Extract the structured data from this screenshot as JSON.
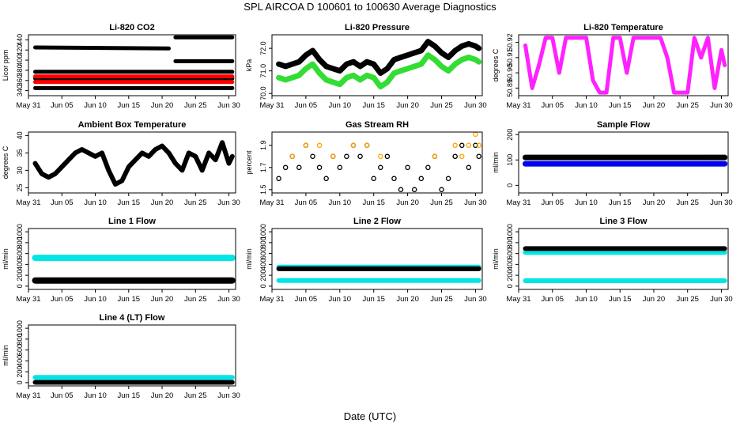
{
  "page": {
    "title": "SPL   AIRCOA D   100601 to 100630   Average Diagnostics",
    "xlabel": "Date (UTC)"
  },
  "colors": {
    "black": "#000000",
    "red": "#ff0000",
    "green": "#33dd33",
    "magenta": "#ff22ff",
    "orange": "#ffa500",
    "blue": "#0000ee",
    "cyan": "#00e5e5"
  },
  "chart_data": [
    {
      "id": "co2",
      "type": "scatter",
      "title": "Li-820 CO2",
      "ylabel": "Licor ppm",
      "ylim": [
        330,
        450
      ],
      "yticks": [
        340,
        360,
        380,
        400,
        420,
        440
      ],
      "xlim": [
        0,
        31
      ],
      "xtick_values": [
        0,
        5,
        10,
        15,
        20,
        25,
        30
      ],
      "xtick_labels": [
        "May 31",
        "Jun 05",
        "Jun 10",
        "Jun 15",
        "Jun 20",
        "Jun 25",
        "Jun 30"
      ],
      "series": [
        {
          "name": "standard-1",
          "color": "black",
          "x": [
            1,
            21
          ],
          "y": [
            425,
            423
          ]
        },
        {
          "name": "standard-1b",
          "color": "black",
          "x": [
            22,
            30.5
          ],
          "y": [
            445,
            445
          ]
        },
        {
          "name": "standard-2",
          "color": "black",
          "x": [
            1,
            30.5
          ],
          "y": [
            377,
            377
          ]
        },
        {
          "name": "standard-3",
          "color": "black",
          "x": [
            1,
            30.5
          ],
          "y": [
            364,
            364
          ]
        },
        {
          "name": "standard-4",
          "color": "black",
          "x": [
            1,
            30.5
          ],
          "y": [
            345,
            345
          ]
        },
        {
          "name": "standard-5",
          "color": "black",
          "x": [
            22,
            30.5
          ],
          "y": [
            398,
            398
          ]
        },
        {
          "name": "sample-a",
          "color": "red",
          "x": [
            1,
            30.5
          ],
          "y": [
            368,
            368
          ]
        },
        {
          "name": "sample-b",
          "color": "red",
          "x": [
            1,
            30.5
          ],
          "y": [
            357,
            357
          ]
        }
      ]
    },
    {
      "id": "pressure",
      "type": "line",
      "title": "Li-820 Pressure",
      "ylabel": "kPa",
      "ylim": [
        69.9,
        72.6
      ],
      "yticks": [
        70.0,
        71.0,
        72.0
      ],
      "ytick_labels": [
        "70.0",
        "71.0",
        "72.0"
      ],
      "xlim": [
        0,
        31
      ],
      "xtick_values": [
        0,
        5,
        10,
        15,
        20,
        25,
        30
      ],
      "xtick_labels": [
        "May 31",
        "Jun 05",
        "Jun 10",
        "Jun 15",
        "Jun 20",
        "Jun 25",
        "Jun 30"
      ],
      "series": [
        {
          "name": "pressure-high",
          "color": "black",
          "x": [
            1,
            2,
            3,
            4,
            5,
            6,
            7,
            8,
            9,
            10,
            11,
            12,
            13,
            14,
            15,
            16,
            17,
            18,
            19,
            20,
            21,
            22,
            23,
            24,
            25,
            26,
            27,
            28,
            29,
            30,
            30.5
          ],
          "y": [
            71.3,
            71.2,
            71.3,
            71.4,
            71.7,
            71.9,
            71.5,
            71.2,
            71.1,
            71.0,
            71.3,
            71.4,
            71.2,
            71.4,
            71.3,
            70.9,
            71.1,
            71.5,
            71.6,
            71.7,
            71.8,
            71.9,
            72.3,
            72.1,
            71.8,
            71.6,
            71.9,
            72.1,
            72.2,
            72.1,
            72.0
          ]
        },
        {
          "name": "pressure-low",
          "color": "green",
          "x": [
            1,
            2,
            3,
            4,
            5,
            6,
            7,
            8,
            9,
            10,
            11,
            12,
            13,
            14,
            15,
            16,
            17,
            18,
            19,
            20,
            21,
            22,
            23,
            24,
            25,
            26,
            27,
            28,
            29,
            30,
            30.5
          ],
          "y": [
            70.7,
            70.6,
            70.7,
            70.8,
            71.1,
            71.3,
            70.9,
            70.6,
            70.5,
            70.4,
            70.7,
            70.8,
            70.6,
            70.8,
            70.7,
            70.3,
            70.5,
            70.9,
            71.0,
            71.1,
            71.2,
            71.3,
            71.7,
            71.5,
            71.2,
            71.0,
            71.3,
            71.5,
            71.6,
            71.5,
            71.4
          ]
        }
      ]
    },
    {
      "id": "licor-temp",
      "type": "line",
      "title": "Li-820 Temperature",
      "ylabel": "degrees C",
      "ylim": [
        50.885,
        50.925
      ],
      "yticks": [
        50.89,
        50.9,
        50.91,
        50.92
      ],
      "ytick_labels": [
        "50.89",
        "50.90",
        "50.91",
        "50.92"
      ],
      "xlim": [
        0,
        31
      ],
      "xtick_values": [
        0,
        5,
        10,
        15,
        20,
        25,
        30
      ],
      "xtick_labels": [
        "May 31",
        "Jun 05",
        "Jun 10",
        "Jun 15",
        "Jun 20",
        "Jun 25",
        "Jun 30"
      ],
      "series": [
        {
          "name": "licor-temp",
          "color": "magenta",
          "x": [
            1,
            2,
            3,
            4,
            5,
            6,
            7,
            8,
            9,
            10,
            11,
            12,
            13,
            14,
            15,
            16,
            17,
            18,
            19,
            20,
            21,
            22,
            23,
            24,
            25,
            26,
            27,
            28,
            29,
            30,
            30.5
          ],
          "y": [
            50.918,
            50.89,
            50.905,
            50.923,
            50.923,
            50.9,
            50.923,
            50.923,
            50.923,
            50.923,
            50.895,
            50.887,
            50.887,
            50.923,
            50.923,
            50.9,
            50.923,
            50.923,
            50.923,
            50.923,
            50.923,
            50.91,
            50.887,
            50.887,
            50.887,
            50.923,
            50.91,
            50.923,
            50.89,
            50.915,
            50.905
          ]
        }
      ]
    },
    {
      "id": "box-temp",
      "type": "line",
      "title": "Ambient Box Temperature",
      "ylabel": "degrees C",
      "ylim": [
        23.5,
        41
      ],
      "yticks": [
        25,
        30,
        35,
        40
      ],
      "xlim": [
        0,
        31
      ],
      "xtick_values": [
        0,
        5,
        10,
        15,
        20,
        25,
        30
      ],
      "xtick_labels": [
        "May 31",
        "Jun 05",
        "Jun 10",
        "Jun 15",
        "Jun 20",
        "Jun 25",
        "Jun 30"
      ],
      "series": [
        {
          "name": "box-temp",
          "color": "black",
          "x": [
            1,
            2,
            3,
            4,
            5,
            6,
            7,
            8,
            9,
            10,
            11,
            12,
            13,
            14,
            15,
            16,
            17,
            18,
            19,
            20,
            21,
            22,
            23,
            24,
            25,
            26,
            27,
            28,
            29,
            30,
            30.5
          ],
          "y": [
            32,
            29,
            28,
            29,
            31,
            33,
            35,
            36,
            35,
            34,
            35,
            30,
            26,
            27,
            31,
            33,
            35,
            34,
            36,
            37,
            35,
            32,
            30,
            35,
            34,
            30,
            35,
            33,
            38,
            32,
            34
          ]
        }
      ]
    },
    {
      "id": "rh",
      "type": "scatter",
      "title": "Gas Stream RH",
      "ylabel": "percent",
      "ylim": [
        1.47,
        2.02
      ],
      "yticks": [
        1.5,
        1.7,
        1.9
      ],
      "xlim": [
        0,
        31
      ],
      "xtick_values": [
        0,
        5,
        10,
        15,
        20,
        25,
        30
      ],
      "xtick_labels": [
        "May 31",
        "Jun 05",
        "Jun 10",
        "Jun 15",
        "Jun 20",
        "Jun 25",
        "Jun 30"
      ],
      "series": [
        {
          "name": "rh-black",
          "color": "black",
          "x": [
            1,
            2,
            3,
            4,
            5,
            6,
            7,
            8,
            9,
            10,
            11,
            12,
            13,
            14,
            15,
            16,
            17,
            18,
            19,
            20,
            21,
            22,
            23,
            24,
            25,
            26,
            27,
            28,
            29,
            30,
            30.5
          ],
          "y": [
            1.6,
            1.7,
            1.8,
            1.7,
            1.9,
            1.8,
            1.7,
            1.6,
            1.8,
            1.7,
            1.8,
            1.9,
            1.8,
            1.9,
            1.6,
            1.7,
            1.8,
            1.6,
            1.5,
            1.7,
            1.5,
            1.6,
            1.7,
            1.8,
            1.5,
            1.6,
            1.8,
            1.9,
            1.7,
            1.9,
            1.8
          ]
        },
        {
          "name": "rh-orange",
          "color": "orange",
          "x": [
            3,
            5,
            7,
            9,
            12,
            14,
            16,
            24,
            27,
            28,
            29,
            30,
            30.5
          ],
          "y": [
            1.8,
            1.9,
            1.9,
            1.8,
            1.9,
            1.9,
            1.8,
            1.8,
            1.9,
            1.8,
            1.9,
            2.0,
            1.9
          ]
        }
      ]
    },
    {
      "id": "sample-flow",
      "type": "line",
      "title": "Sample Flow",
      "ylabel": "ml/min",
      "ylim": [
        -30,
        210
      ],
      "yticks": [
        0,
        100,
        200
      ],
      "xlim": [
        0,
        31
      ],
      "xtick_values": [
        0,
        5,
        10,
        15,
        20,
        25,
        30
      ],
      "xtick_labels": [
        "May 31",
        "Jun 05",
        "Jun 10",
        "Jun 15",
        "Jun 20",
        "Jun 25",
        "Jun 30"
      ],
      "series": [
        {
          "name": "sample-flow-black",
          "color": "black",
          "x": [
            1,
            30.5
          ],
          "y": [
            110,
            110
          ]
        },
        {
          "name": "sample-flow-blue",
          "color": "blue",
          "x": [
            1,
            30.5
          ],
          "y": [
            85,
            85
          ]
        }
      ]
    },
    {
      "id": "line1",
      "type": "line",
      "title": "Line 1 Flow",
      "ylabel": "ml/min",
      "ylim": [
        -60,
        1060
      ],
      "yticks": [
        0,
        200,
        400,
        600,
        800,
        1000
      ],
      "xlim": [
        0,
        31
      ],
      "xtick_values": [
        0,
        5,
        10,
        15,
        20,
        25,
        30
      ],
      "xtick_labels": [
        "May 31",
        "Jun 05",
        "Jun 10",
        "Jun 15",
        "Jun 20",
        "Jun 25",
        "Jun 30"
      ],
      "series": [
        {
          "name": "line1-cyan",
          "color": "cyan",
          "x": [
            1,
            30.5
          ],
          "y": [
            520,
            520
          ]
        },
        {
          "name": "line1-black",
          "color": "black",
          "x": [
            1,
            30.5
          ],
          "y": [
            105,
            105
          ]
        }
      ]
    },
    {
      "id": "line2",
      "type": "line",
      "title": "Line 2 Flow",
      "ylabel": "ml/min",
      "ylim": [
        -60,
        1060
      ],
      "yticks": [
        0,
        200,
        400,
        600,
        800,
        1000
      ],
      "xlim": [
        0,
        31
      ],
      "xtick_values": [
        0,
        5,
        10,
        15,
        20,
        25,
        30
      ],
      "xtick_labels": [
        "May 31",
        "Jun 05",
        "Jun 10",
        "Jun 15",
        "Jun 20",
        "Jun 25",
        "Jun 30"
      ],
      "series": [
        {
          "name": "line2-cyan-low",
          "color": "cyan",
          "x": [
            1,
            30.5
          ],
          "y": [
            105,
            105
          ]
        },
        {
          "name": "line2-cyan-high",
          "color": "cyan",
          "x": [
            1,
            30.5
          ],
          "y": [
            350,
            350
          ]
        },
        {
          "name": "line2-black",
          "color": "black",
          "x": [
            1,
            30.5
          ],
          "y": [
            320,
            320
          ]
        }
      ]
    },
    {
      "id": "line3",
      "type": "line",
      "title": "Line 3 Flow",
      "ylabel": "ml/min",
      "ylim": [
        -60,
        1060
      ],
      "yticks": [
        0,
        200,
        400,
        600,
        800,
        1000
      ],
      "xlim": [
        0,
        31
      ],
      "xtick_values": [
        0,
        5,
        10,
        15,
        20,
        25,
        30
      ],
      "xtick_labels": [
        "May 31",
        "Jun 05",
        "Jun 10",
        "Jun 15",
        "Jun 20",
        "Jun 25",
        "Jun 30"
      ],
      "series": [
        {
          "name": "line3-cyan",
          "color": "cyan",
          "x": [
            1,
            30.5
          ],
          "y": [
            620,
            620
          ]
        },
        {
          "name": "line3-black",
          "color": "black",
          "x": [
            1,
            30.5
          ],
          "y": [
            690,
            690
          ]
        },
        {
          "name": "line3-cyan-low",
          "color": "cyan",
          "x": [
            1,
            30.5
          ],
          "y": [
            100,
            100
          ]
        }
      ]
    },
    {
      "id": "line4",
      "type": "line",
      "title": "Line 4 (LT) Flow",
      "ylabel": "ml/min",
      "ylim": [
        -60,
        1060
      ],
      "yticks": [
        0,
        200,
        400,
        600,
        800,
        1000
      ],
      "xlim": [
        0,
        31
      ],
      "xtick_values": [
        0,
        5,
        10,
        15,
        20,
        25,
        30
      ],
      "xtick_labels": [
        "May 31",
        "Jun 05",
        "Jun 10",
        "Jun 15",
        "Jun 20",
        "Jun 25",
        "Jun 30"
      ],
      "series": [
        {
          "name": "line4-cyan",
          "color": "cyan",
          "x": [
            1,
            30.5
          ],
          "y": [
            95,
            95
          ]
        },
        {
          "name": "line4-black",
          "color": "black",
          "x": [
            1,
            30.5
          ],
          "y": [
            5,
            5
          ]
        }
      ]
    }
  ]
}
